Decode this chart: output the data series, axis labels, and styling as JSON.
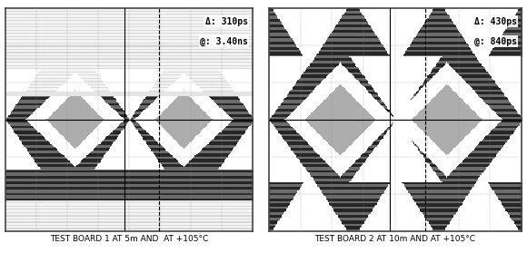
{
  "panel1": {
    "label": "TEST BOARD 1 AT 5m AND  AT +105°C",
    "annot1": "Δ: 310ps",
    "annot2": "@: 3.40ns",
    "diamond_fill": "#b0b0b0",
    "diamond_outline": "#222222"
  },
  "panel2": {
    "label": "TEST BOARD 2 AT 10m AND AT +105°C",
    "annot1": "Δ: 430ps",
    "annot2": "@: 840ps",
    "diamond_fill": "#b0b0b0",
    "diamond_outline": "#222222"
  },
  "outer_bg": "#ffffff",
  "label_fontsize": 6.5,
  "annot_fontsize": 7.0,
  "stripe_dark": "#303030",
  "stripe_light": "#909090",
  "n_stripes": 80
}
